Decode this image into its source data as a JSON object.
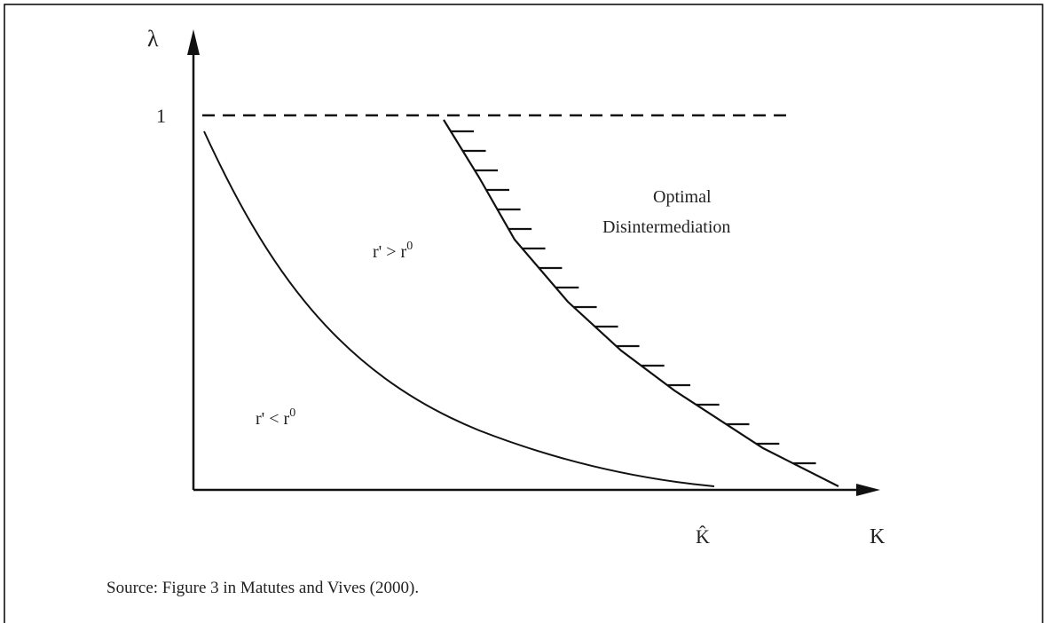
{
  "figure": {
    "y_axis_label": "λ",
    "x_axis_label": "K",
    "y_level_label": "1",
    "x_point_label": "K̂",
    "region_upper": {
      "base": "r' > r",
      "sup": "0"
    },
    "region_lower": {
      "base": "r' < r",
      "sup": "0"
    },
    "region_right": [
      "Optimal",
      "Disintermediation"
    ]
  },
  "caption": "Source: Figure 3 in Matutes and Vives (2000)."
}
